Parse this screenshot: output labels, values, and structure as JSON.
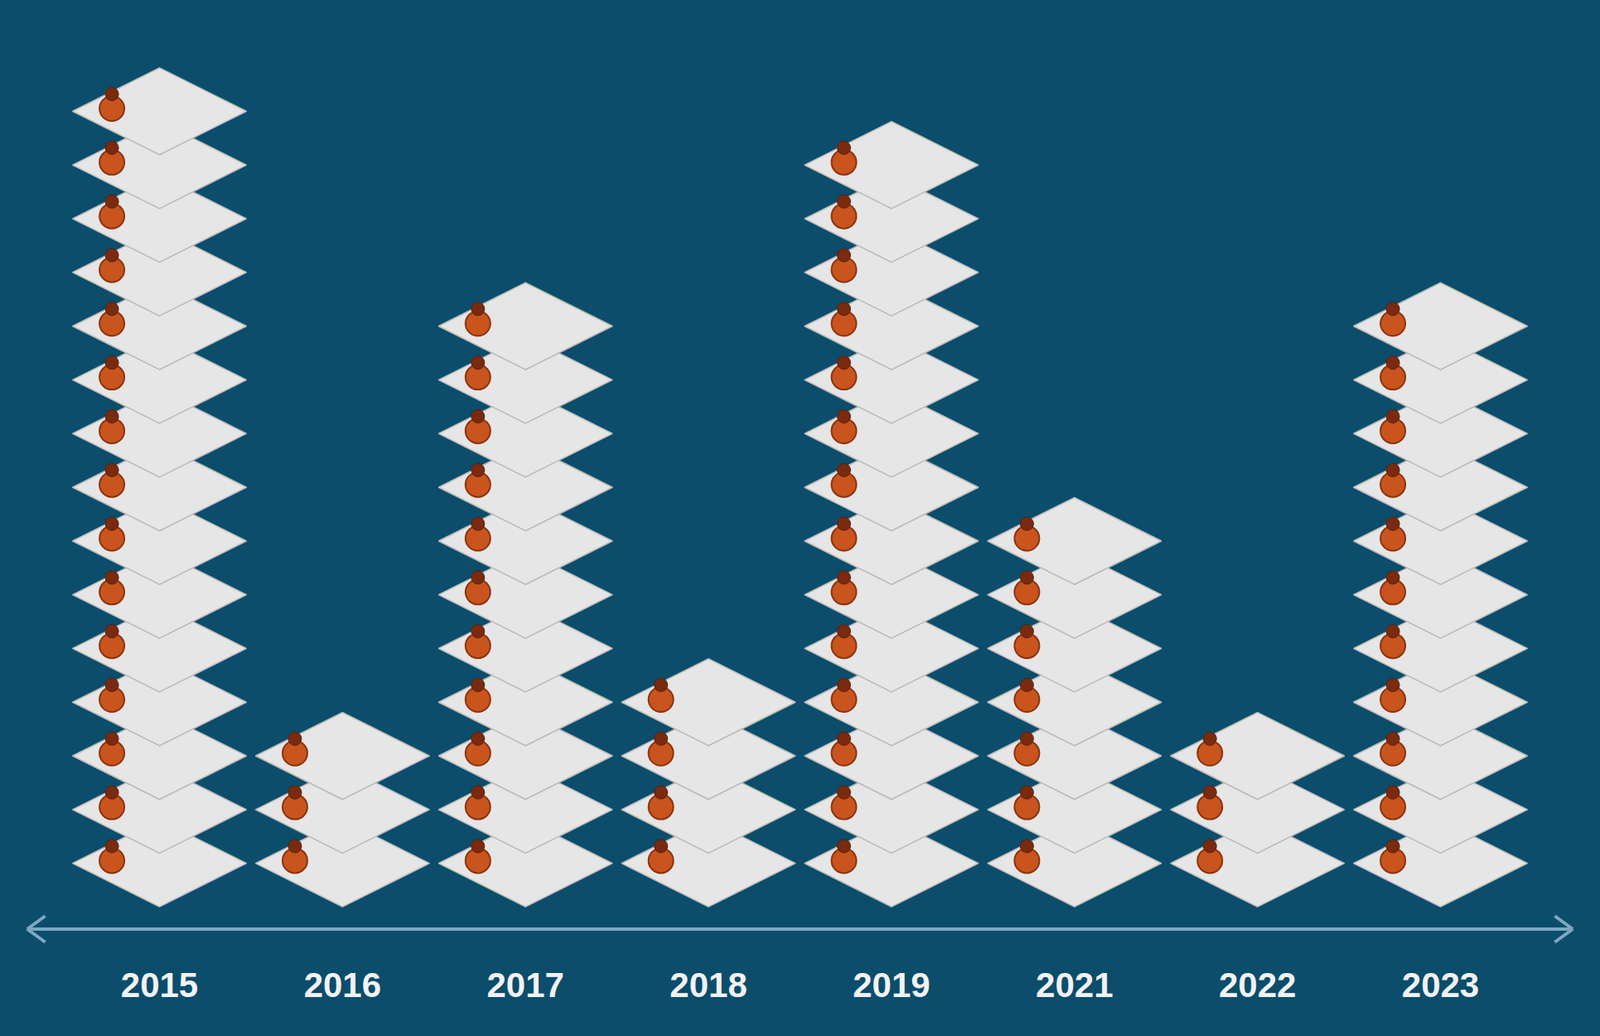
{
  "chart_data": {
    "type": "pictogram",
    "categories": [
      "2015",
      "2016",
      "2017",
      "2018",
      "2019",
      "2021",
      "2022",
      "2023"
    ],
    "values": [
      15,
      3,
      11,
      4,
      14,
      7,
      3,
      11
    ],
    "tick_labels": "x"
  }
}
